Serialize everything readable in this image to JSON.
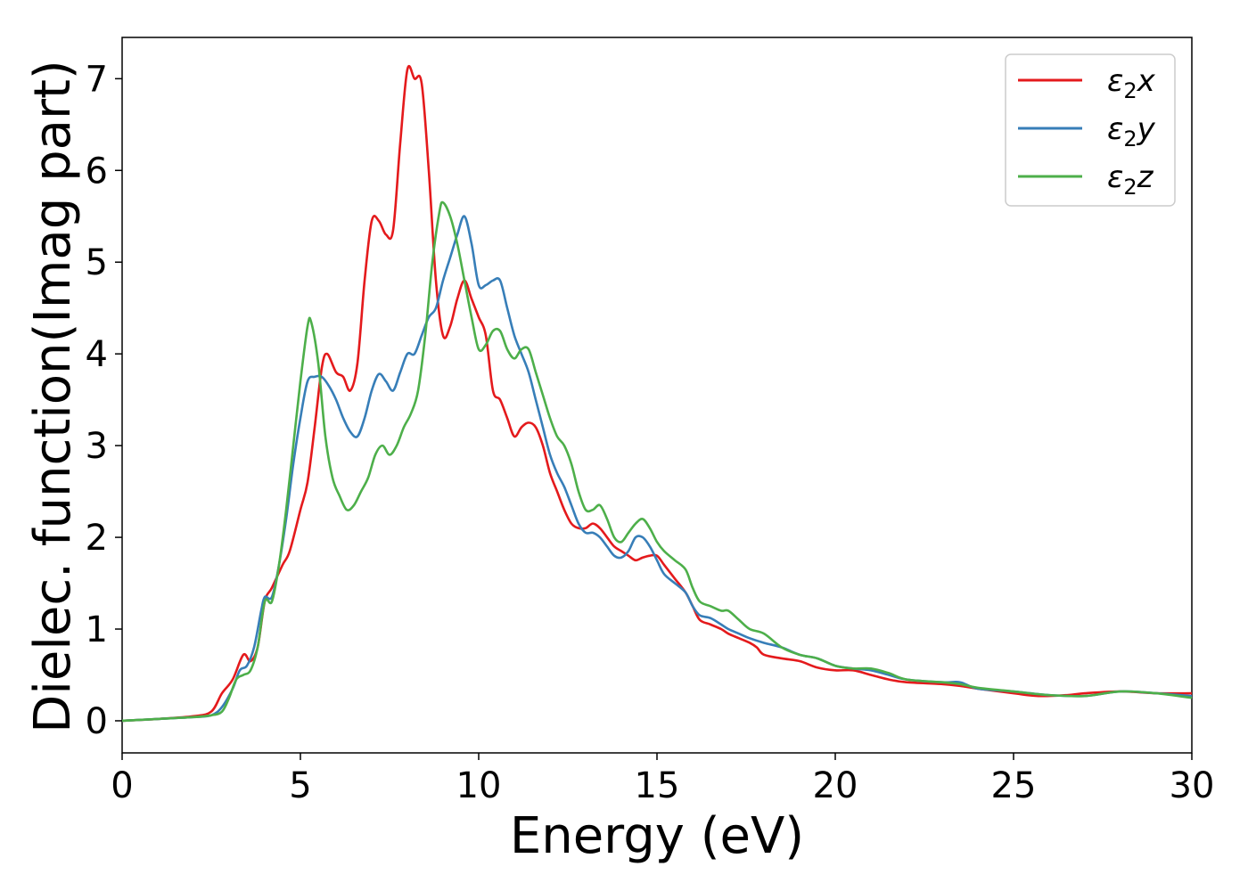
{
  "chart_data": {
    "type": "line",
    "xlabel": "Energy (eV)",
    "ylabel": "Dielec. function(Imag part)",
    "xlim": [
      0,
      30
    ],
    "ylim": [
      -0.35,
      7.45
    ],
    "xticks": [
      0,
      5,
      10,
      15,
      20,
      25,
      30
    ],
    "yticks": [
      0,
      1,
      2,
      3,
      4,
      5,
      6,
      7
    ],
    "grid": false,
    "legend_position": "top-right",
    "colors": {
      "x": "#e41a1c",
      "y": "#377eb8",
      "z": "#4daf4a"
    },
    "series": [
      {
        "key": "x",
        "legend_base": "ε",
        "legend_sub": "2",
        "legend_var": "x",
        "points": [
          [
            0,
            0.0
          ],
          [
            1,
            0.02
          ],
          [
            2,
            0.05
          ],
          [
            2.5,
            0.1
          ],
          [
            2.8,
            0.3
          ],
          [
            3.1,
            0.45
          ],
          [
            3.4,
            0.72
          ],
          [
            3.6,
            0.65
          ],
          [
            3.8,
            0.8
          ],
          [
            4.0,
            1.3
          ],
          [
            4.2,
            1.45
          ],
          [
            4.5,
            1.7
          ],
          [
            4.7,
            1.85
          ],
          [
            5.0,
            2.3
          ],
          [
            5.2,
            2.6
          ],
          [
            5.4,
            3.2
          ],
          [
            5.6,
            3.85
          ],
          [
            5.75,
            4.0
          ],
          [
            6.0,
            3.8
          ],
          [
            6.2,
            3.75
          ],
          [
            6.4,
            3.6
          ],
          [
            6.6,
            3.9
          ],
          [
            6.8,
            4.8
          ],
          [
            7.0,
            5.45
          ],
          [
            7.2,
            5.45
          ],
          [
            7.4,
            5.3
          ],
          [
            7.6,
            5.35
          ],
          [
            7.8,
            6.3
          ],
          [
            8.0,
            7.1
          ],
          [
            8.2,
            7.0
          ],
          [
            8.4,
            6.95
          ],
          [
            8.6,
            6.0
          ],
          [
            8.8,
            4.8
          ],
          [
            9.0,
            4.2
          ],
          [
            9.2,
            4.3
          ],
          [
            9.4,
            4.6
          ],
          [
            9.6,
            4.8
          ],
          [
            9.8,
            4.6
          ],
          [
            10.0,
            4.4
          ],
          [
            10.2,
            4.2
          ],
          [
            10.4,
            3.6
          ],
          [
            10.6,
            3.5
          ],
          [
            10.8,
            3.3
          ],
          [
            11.0,
            3.1
          ],
          [
            11.2,
            3.2
          ],
          [
            11.4,
            3.25
          ],
          [
            11.6,
            3.2
          ],
          [
            11.8,
            3.0
          ],
          [
            12.0,
            2.7
          ],
          [
            12.2,
            2.5
          ],
          [
            12.4,
            2.3
          ],
          [
            12.6,
            2.15
          ],
          [
            12.8,
            2.1
          ],
          [
            13.0,
            2.1
          ],
          [
            13.2,
            2.15
          ],
          [
            13.4,
            2.1
          ],
          [
            13.6,
            2.0
          ],
          [
            13.8,
            1.9
          ],
          [
            14.0,
            1.85
          ],
          [
            14.2,
            1.8
          ],
          [
            14.4,
            1.75
          ],
          [
            14.6,
            1.78
          ],
          [
            14.8,
            1.8
          ],
          [
            15.0,
            1.8
          ],
          [
            15.2,
            1.7
          ],
          [
            15.5,
            1.55
          ],
          [
            15.8,
            1.4
          ],
          [
            16.0,
            1.25
          ],
          [
            16.2,
            1.1
          ],
          [
            16.5,
            1.05
          ],
          [
            16.8,
            1.0
          ],
          [
            17.0,
            0.95
          ],
          [
            17.3,
            0.9
          ],
          [
            17.6,
            0.85
          ],
          [
            17.8,
            0.8
          ],
          [
            18.0,
            0.72
          ],
          [
            18.5,
            0.68
          ],
          [
            19.0,
            0.65
          ],
          [
            19.5,
            0.58
          ],
          [
            20.0,
            0.55
          ],
          [
            20.5,
            0.55
          ],
          [
            21.0,
            0.5
          ],
          [
            21.5,
            0.45
          ],
          [
            22.0,
            0.42
          ],
          [
            23.0,
            0.4
          ],
          [
            23.5,
            0.38
          ],
          [
            24.0,
            0.35
          ],
          [
            25.0,
            0.3
          ],
          [
            25.7,
            0.27
          ],
          [
            26.5,
            0.28
          ],
          [
            27.0,
            0.3
          ],
          [
            28.0,
            0.32
          ],
          [
            29.0,
            0.3
          ],
          [
            30.0,
            0.3
          ]
        ]
      },
      {
        "key": "y",
        "legend_base": "ε",
        "legend_sub": "2",
        "legend_var": "y",
        "points": [
          [
            0,
            0.0
          ],
          [
            1,
            0.02
          ],
          [
            2,
            0.04
          ],
          [
            2.5,
            0.06
          ],
          [
            2.8,
            0.15
          ],
          [
            3.1,
            0.35
          ],
          [
            3.3,
            0.55
          ],
          [
            3.5,
            0.6
          ],
          [
            3.7,
            0.8
          ],
          [
            3.9,
            1.2
          ],
          [
            4.0,
            1.35
          ],
          [
            4.2,
            1.35
          ],
          [
            4.4,
            1.7
          ],
          [
            4.6,
            2.2
          ],
          [
            4.8,
            2.8
          ],
          [
            5.0,
            3.3
          ],
          [
            5.2,
            3.7
          ],
          [
            5.4,
            3.75
          ],
          [
            5.6,
            3.75
          ],
          [
            5.8,
            3.65
          ],
          [
            6.0,
            3.5
          ],
          [
            6.2,
            3.3
          ],
          [
            6.4,
            3.15
          ],
          [
            6.6,
            3.1
          ],
          [
            6.8,
            3.3
          ],
          [
            7.0,
            3.6
          ],
          [
            7.2,
            3.78
          ],
          [
            7.4,
            3.7
          ],
          [
            7.6,
            3.6
          ],
          [
            7.8,
            3.8
          ],
          [
            8.0,
            4.0
          ],
          [
            8.2,
            4.0
          ],
          [
            8.4,
            4.2
          ],
          [
            8.6,
            4.4
          ],
          [
            8.8,
            4.5
          ],
          [
            9.0,
            4.8
          ],
          [
            9.2,
            5.05
          ],
          [
            9.4,
            5.3
          ],
          [
            9.6,
            5.5
          ],
          [
            9.8,
            5.2
          ],
          [
            10.0,
            4.75
          ],
          [
            10.2,
            4.75
          ],
          [
            10.4,
            4.8
          ],
          [
            10.6,
            4.8
          ],
          [
            10.8,
            4.5
          ],
          [
            11.0,
            4.2
          ],
          [
            11.2,
            4.0
          ],
          [
            11.4,
            3.8
          ],
          [
            11.6,
            3.5
          ],
          [
            11.8,
            3.2
          ],
          [
            12.0,
            2.9
          ],
          [
            12.2,
            2.7
          ],
          [
            12.4,
            2.55
          ],
          [
            12.6,
            2.35
          ],
          [
            12.8,
            2.15
          ],
          [
            13.0,
            2.05
          ],
          [
            13.2,
            2.05
          ],
          [
            13.4,
            2.0
          ],
          [
            13.6,
            1.9
          ],
          [
            13.8,
            1.8
          ],
          [
            14.0,
            1.78
          ],
          [
            14.2,
            1.85
          ],
          [
            14.4,
            2.0
          ],
          [
            14.6,
            2.0
          ],
          [
            14.8,
            1.9
          ],
          [
            15.0,
            1.75
          ],
          [
            15.2,
            1.6
          ],
          [
            15.5,
            1.5
          ],
          [
            15.8,
            1.4
          ],
          [
            16.0,
            1.25
          ],
          [
            16.2,
            1.15
          ],
          [
            16.5,
            1.12
          ],
          [
            16.8,
            1.05
          ],
          [
            17.0,
            1.0
          ],
          [
            17.3,
            0.95
          ],
          [
            17.6,
            0.9
          ],
          [
            18.0,
            0.85
          ],
          [
            18.5,
            0.8
          ],
          [
            19.0,
            0.72
          ],
          [
            19.5,
            0.68
          ],
          [
            20.0,
            0.6
          ],
          [
            20.5,
            0.57
          ],
          [
            21.0,
            0.55
          ],
          [
            21.5,
            0.5
          ],
          [
            22.0,
            0.45
          ],
          [
            23.0,
            0.42
          ],
          [
            23.5,
            0.42
          ],
          [
            24.0,
            0.35
          ],
          [
            25.0,
            0.32
          ],
          [
            26.0,
            0.28
          ],
          [
            27.0,
            0.27
          ],
          [
            28.0,
            0.32
          ],
          [
            29.0,
            0.3
          ],
          [
            30.0,
            0.27
          ]
        ]
      },
      {
        "key": "z",
        "legend_base": "ε",
        "legend_sub": "2",
        "legend_var": "z",
        "points": [
          [
            0,
            0.0
          ],
          [
            1,
            0.02
          ],
          [
            2,
            0.04
          ],
          [
            2.5,
            0.06
          ],
          [
            2.8,
            0.1
          ],
          [
            3.0,
            0.25
          ],
          [
            3.2,
            0.45
          ],
          [
            3.4,
            0.5
          ],
          [
            3.6,
            0.55
          ],
          [
            3.8,
            0.8
          ],
          [
            4.0,
            1.3
          ],
          [
            4.2,
            1.3
          ],
          [
            4.4,
            1.7
          ],
          [
            4.6,
            2.3
          ],
          [
            4.8,
            3.0
          ],
          [
            5.0,
            3.7
          ],
          [
            5.2,
            4.3
          ],
          [
            5.3,
            4.35
          ],
          [
            5.5,
            3.9
          ],
          [
            5.7,
            3.1
          ],
          [
            5.9,
            2.65
          ],
          [
            6.1,
            2.45
          ],
          [
            6.3,
            2.3
          ],
          [
            6.5,
            2.35
          ],
          [
            6.7,
            2.5
          ],
          [
            6.9,
            2.65
          ],
          [
            7.1,
            2.9
          ],
          [
            7.3,
            3.0
          ],
          [
            7.5,
            2.9
          ],
          [
            7.7,
            3.0
          ],
          [
            7.9,
            3.2
          ],
          [
            8.1,
            3.35
          ],
          [
            8.3,
            3.6
          ],
          [
            8.5,
            4.2
          ],
          [
            8.7,
            5.0
          ],
          [
            8.9,
            5.55
          ],
          [
            9.0,
            5.65
          ],
          [
            9.2,
            5.5
          ],
          [
            9.4,
            5.2
          ],
          [
            9.6,
            4.8
          ],
          [
            9.8,
            4.4
          ],
          [
            10.0,
            4.05
          ],
          [
            10.2,
            4.1
          ],
          [
            10.4,
            4.25
          ],
          [
            10.6,
            4.25
          ],
          [
            10.8,
            4.05
          ],
          [
            11.0,
            3.95
          ],
          [
            11.2,
            4.05
          ],
          [
            11.4,
            4.05
          ],
          [
            11.6,
            3.8
          ],
          [
            11.8,
            3.55
          ],
          [
            12.0,
            3.3
          ],
          [
            12.2,
            3.1
          ],
          [
            12.4,
            3.0
          ],
          [
            12.6,
            2.8
          ],
          [
            12.8,
            2.5
          ],
          [
            13.0,
            2.3
          ],
          [
            13.2,
            2.3
          ],
          [
            13.4,
            2.35
          ],
          [
            13.6,
            2.2
          ],
          [
            13.8,
            2.0
          ],
          [
            14.0,
            1.95
          ],
          [
            14.2,
            2.05
          ],
          [
            14.4,
            2.15
          ],
          [
            14.6,
            2.2
          ],
          [
            14.8,
            2.1
          ],
          [
            15.0,
            1.95
          ],
          [
            15.2,
            1.85
          ],
          [
            15.5,
            1.75
          ],
          [
            15.8,
            1.65
          ],
          [
            16.0,
            1.45
          ],
          [
            16.2,
            1.3
          ],
          [
            16.5,
            1.25
          ],
          [
            16.8,
            1.2
          ],
          [
            17.0,
            1.2
          ],
          [
            17.3,
            1.1
          ],
          [
            17.6,
            1.0
          ],
          [
            18.0,
            0.95
          ],
          [
            18.5,
            0.8
          ],
          [
            19.0,
            0.72
          ],
          [
            19.5,
            0.68
          ],
          [
            20.0,
            0.6
          ],
          [
            20.5,
            0.57
          ],
          [
            21.0,
            0.57
          ],
          [
            21.5,
            0.52
          ],
          [
            22.0,
            0.45
          ],
          [
            23.0,
            0.42
          ],
          [
            23.5,
            0.4
          ],
          [
            24.0,
            0.36
          ],
          [
            25.0,
            0.32
          ],
          [
            26.0,
            0.28
          ],
          [
            27.0,
            0.27
          ],
          [
            28.0,
            0.32
          ],
          [
            29.0,
            0.3
          ],
          [
            30.0,
            0.25
          ]
        ]
      }
    ]
  }
}
